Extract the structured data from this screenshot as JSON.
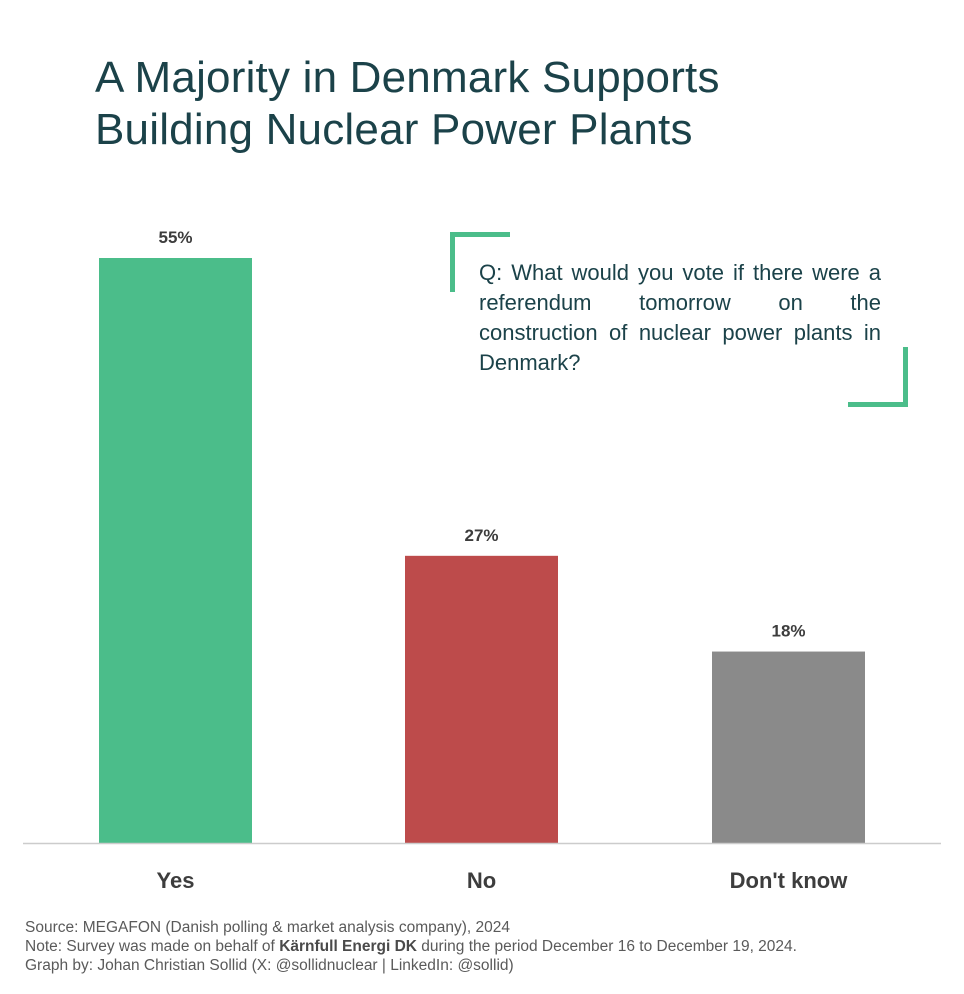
{
  "title": {
    "line1": "A Majority in Denmark Supports",
    "line2": "Building Nuclear Power Plants"
  },
  "question": "Q: What would you vote if there were a referendum tomorrow on the construction of nuclear power plants in Denmark?",
  "colors": {
    "title": "#1b4249",
    "accent": "#4bbd8a",
    "yes": "#4bbd8a",
    "no": "#bd4b4b",
    "dont_know": "#8a8a8a",
    "axis": "#cccccc",
    "label": "#3d3d3d"
  },
  "chart_data": {
    "type": "bar",
    "title": "A Majority in Denmark Supports Building Nuclear Power Plants",
    "categories": [
      "Yes",
      "No",
      "Don't know"
    ],
    "values": [
      55,
      27,
      18
    ],
    "value_labels": [
      "55%",
      "27%",
      "18%"
    ],
    "unit": "%",
    "xlabel": "",
    "ylabel": "",
    "ylim": [
      0,
      55
    ],
    "grid": false,
    "legend": "none"
  },
  "footer": {
    "source": "Source: MEGAFON (Danish polling & market analysis company), 2024",
    "note_prefix": "Note: Survey was made on behalf of",
    "note_org": "Kärnfull Energi DK",
    "note_suffix": "during the period December 16 to December 19, 2024.",
    "credit": "Graph by: Johan Christian Sollid (X: @sollidnuclear | LinkedIn: @sollid)"
  }
}
